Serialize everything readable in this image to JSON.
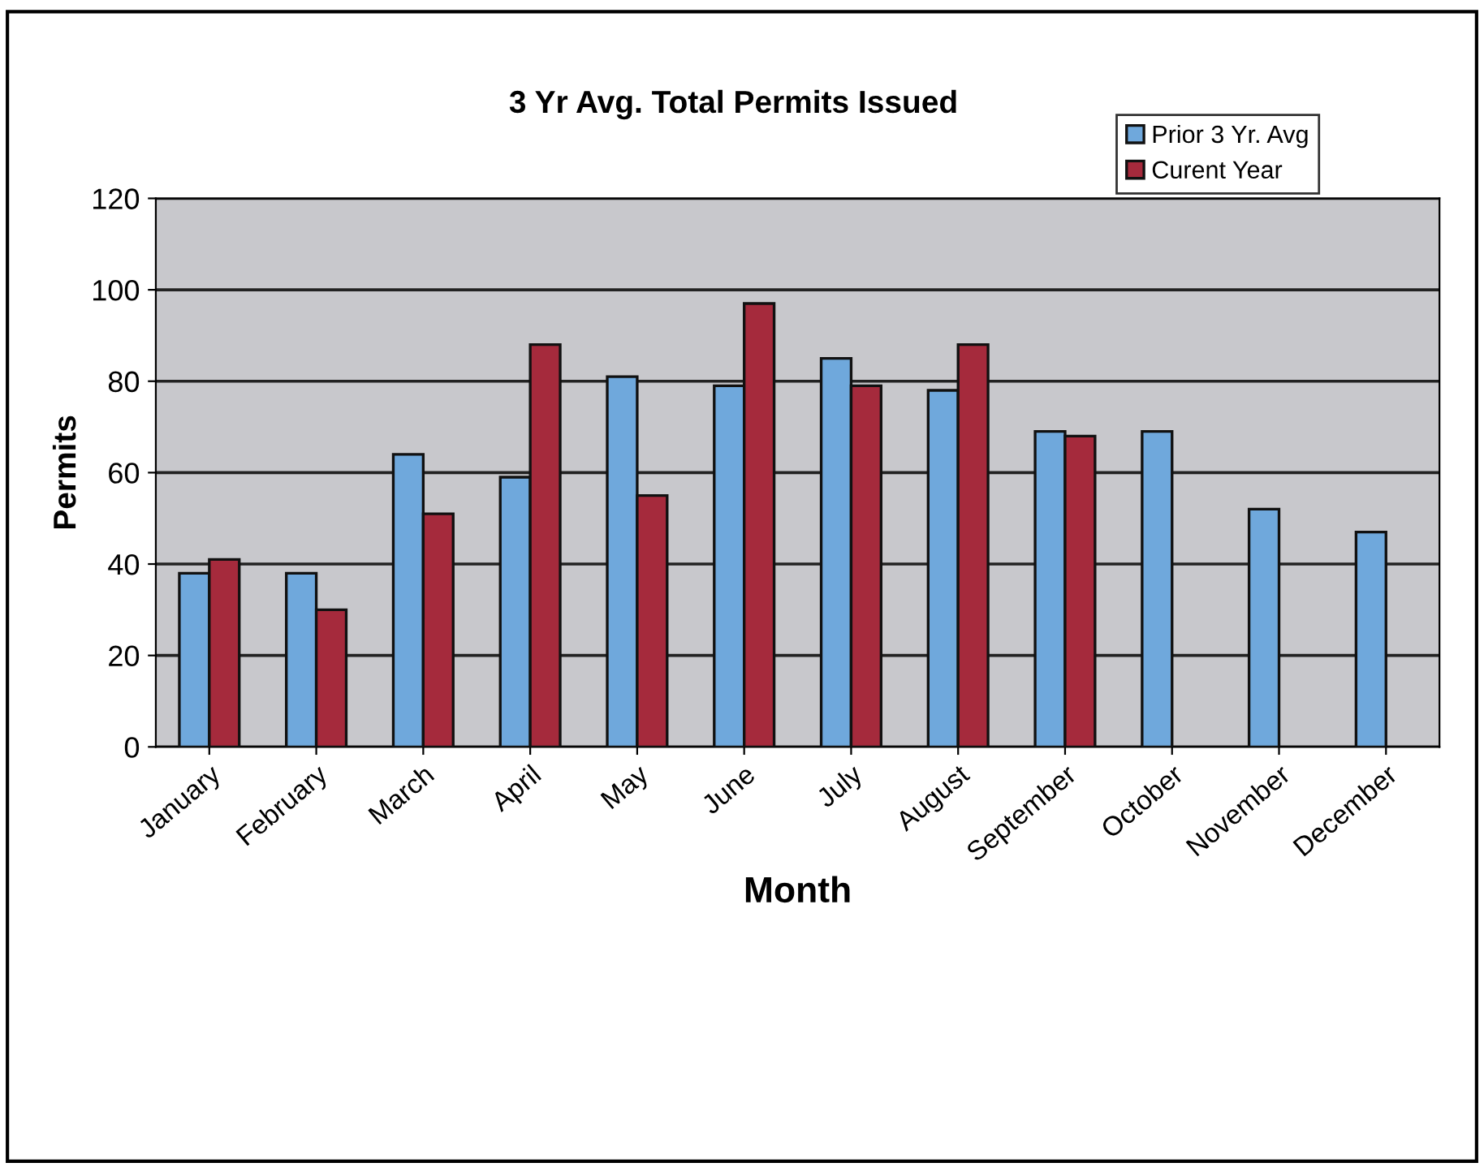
{
  "chart_data": {
    "type": "bar",
    "title": "3 Yr Avg. Total Permits Issued",
    "xlabel": "Month",
    "ylabel": "Permits",
    "categories": [
      "January",
      "February",
      "March",
      "April",
      "May",
      "June",
      "July",
      "August",
      "September",
      "October",
      "November",
      "December"
    ],
    "series": [
      {
        "name": "Prior 3 Yr. Avg",
        "color": "#6fa8dc",
        "values": [
          38,
          38,
          64,
          59,
          81,
          79,
          85,
          78,
          69,
          69,
          52,
          47
        ]
      },
      {
        "name": "Curent Year",
        "color": "#a52a3c",
        "values": [
          41,
          30,
          51,
          88,
          55,
          97,
          79,
          88,
          68,
          null,
          null,
          null
        ]
      }
    ],
    "ylim": [
      0,
      120
    ],
    "yticks": [
      0,
      20,
      40,
      60,
      80,
      100,
      120
    ],
    "grid": "y",
    "legend": "top right"
  }
}
